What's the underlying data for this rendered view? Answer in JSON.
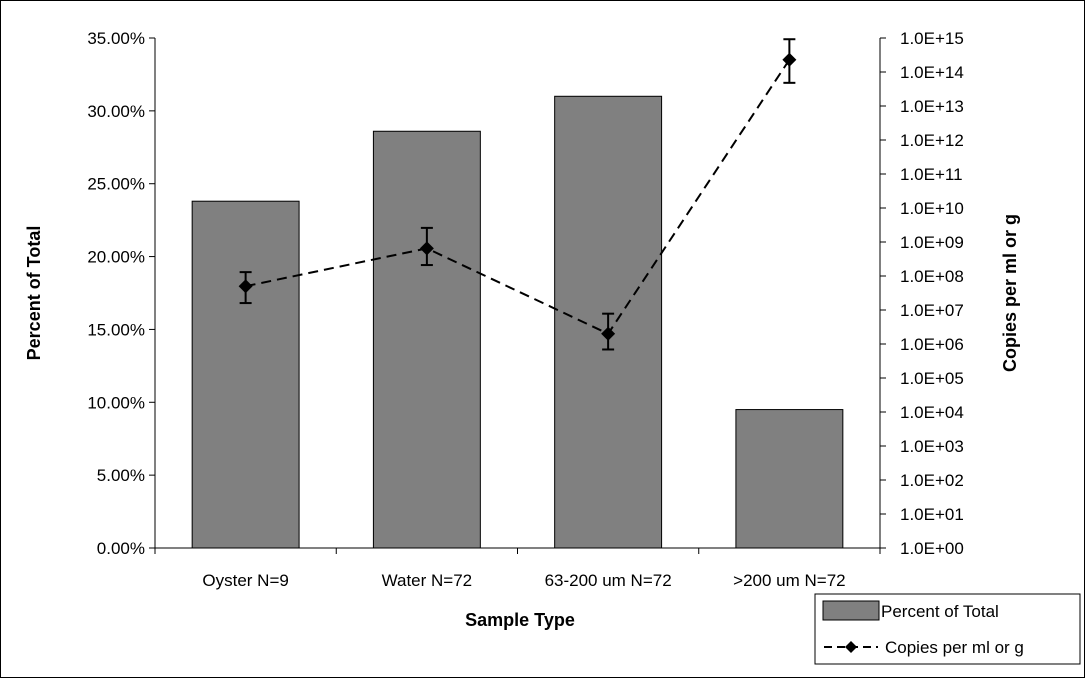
{
  "chart_data": {
    "type": "bar",
    "categories": [
      "Oyster N=9",
      "Water N=72",
      "63-200 um N=72",
      ">200 um N=72"
    ],
    "xlabel": "Sample Type",
    "ylabel": "Percent of Total",
    "y2label": "Copies per ml or g",
    "ylim": [
      0,
      35
    ],
    "y2lim": [
      1,
      1000000000000000.0
    ],
    "y2_scale": "log",
    "yticks": [
      "0.00%",
      "5.00%",
      "10.00%",
      "15.00%",
      "20.00%",
      "25.00%",
      "30.00%",
      "35.00%"
    ],
    "y2ticks": [
      "1.0E+00",
      "1.0E+01",
      "1.0E+02",
      "1.0E+03",
      "1.0E+04",
      "1.0E+05",
      "1.0E+06",
      "1.0E+07",
      "1.0E+08",
      "1.0E+09",
      "1.0E+10",
      "1.0E+11",
      "1.0E+12",
      "1.0E+13",
      "1.0E+14",
      "1.0E+15"
    ],
    "grid": false,
    "legend_position": "bottom-right",
    "series": [
      {
        "name": "Percent of Total",
        "type": "bar",
        "axis": "left",
        "color": "#808080",
        "values": [
          23.8,
          28.6,
          31.0,
          9.5
        ]
      },
      {
        "name": "Copies per ml or g",
        "type": "line",
        "axis": "right",
        "line_style": "dashed",
        "marker": "diamond",
        "color": "#000000",
        "values": [
          50000000.0,
          650000000.0,
          2000000.0,
          230000000000000.0
        ],
        "error_low": [
          16000000.0,
          210000000.0,
          690000.0,
          48000000000000.0
        ],
        "error_high": [
          130000000.0,
          2600000000.0,
          7800000.0,
          920000000000000.0
        ]
      }
    ]
  }
}
